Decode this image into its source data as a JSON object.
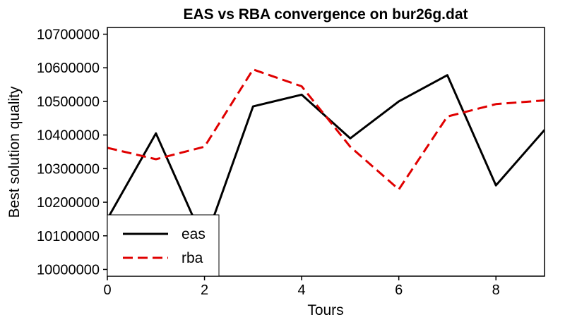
{
  "chart_data": {
    "type": "line",
    "title": "EAS vs RBA convergence on bur26g.dat",
    "xlabel": "Tours",
    "ylabel": "Best solution quality",
    "xlim": [
      0,
      9
    ],
    "ylim": [
      9980000,
      10720000
    ],
    "xticks": [
      0,
      2,
      4,
      6,
      8
    ],
    "xtick_labels": [
      "0",
      "2",
      "4",
      "6",
      "8"
    ],
    "yticks": [
      10000000,
      10100000,
      10200000,
      10300000,
      10400000,
      10500000,
      10600000,
      10700000
    ],
    "ytick_labels": [
      "10000000",
      "10100000",
      "10200000",
      "10300000",
      "10400000",
      "10500000",
      "10600000",
      "10700000"
    ],
    "grid": false,
    "legend_position": "bottom-left",
    "x": [
      0,
      1,
      2,
      3,
      4,
      5,
      6,
      7,
      8,
      9
    ],
    "series": [
      {
        "name": "eas",
        "color": "#000000",
        "style": "solid",
        "values": [
          10150000,
          10405000,
          10080000,
          10485000,
          10520000,
          10390000,
          10500000,
          10578000,
          10250000,
          10415000
        ]
      },
      {
        "name": "rba",
        "color": "#e00000",
        "style": "dashed",
        "values": [
          10362000,
          10328000,
          10365000,
          10595000,
          10545000,
          10365000,
          10238000,
          10455000,
          10492000,
          10503000
        ]
      }
    ]
  }
}
